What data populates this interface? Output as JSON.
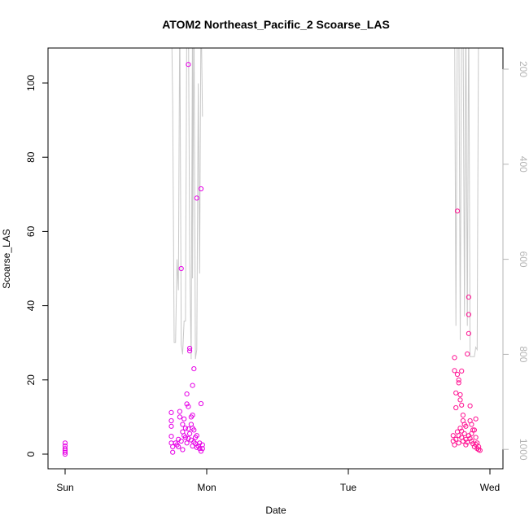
{
  "chart_data": {
    "type": "scatter",
    "title": "ATOM2 Northeast_Pacific_2 Scoarse_LAS",
    "xlabel": "Date",
    "ylabel": "Scoarse_LAS",
    "x_ticks": [
      "Sun",
      "Mon",
      "Tue",
      "Wed"
    ],
    "ylim": [
      -4,
      110
    ],
    "y_ticks": [
      0,
      20,
      40,
      60,
      80,
      100
    ],
    "y2_ticks": [
      200,
      400,
      600,
      800,
      1000
    ],
    "y2_reversed": true,
    "grid": false,
    "colors": {
      "points_a": "#e600e6",
      "points_b": "#ff1493",
      "secondary_line": "#c8c8c8"
    },
    "series": [
      {
        "points": [
          [
            0.0,
            0
          ],
          [
            0.0,
            0.5
          ],
          [
            0.0,
            1
          ],
          [
            0.0,
            1.5
          ],
          [
            0.0,
            2.2
          ],
          [
            0.0,
            3
          ],
          [
            0.75,
            11.2
          ],
          [
            0.75,
            9
          ],
          [
            0.75,
            7.5
          ],
          [
            0.75,
            4.8
          ],
          [
            0.75,
            3
          ],
          [
            0.76,
            2
          ],
          [
            0.76,
            0.5
          ],
          [
            0.81,
            11.5
          ],
          [
            0.81,
            10
          ],
          [
            0.82,
            50
          ],
          [
            0.83,
            8
          ],
          [
            0.83,
            6
          ],
          [
            0.84,
            5
          ],
          [
            0.84,
            9.5
          ],
          [
            0.86,
            16.2
          ],
          [
            0.86,
            13.5
          ],
          [
            0.87,
            105
          ],
          [
            0.87,
            12.8
          ],
          [
            0.88,
            28.5
          ],
          [
            0.88,
            27.8
          ],
          [
            0.89,
            10
          ],
          [
            0.89,
            8
          ],
          [
            0.9,
            7
          ],
          [
            0.9,
            18.5
          ],
          [
            0.9,
            10.5
          ],
          [
            0.91,
            23
          ],
          [
            0.91,
            6.5
          ],
          [
            0.93,
            69
          ],
          [
            0.93,
            5
          ],
          [
            0.95,
            3
          ],
          [
            0.96,
            71.5
          ],
          [
            0.96,
            13.6
          ],
          [
            0.97,
            2.5
          ],
          [
            0.97,
            1.5
          ],
          [
            0.78,
            3
          ],
          [
            0.79,
            2.5
          ],
          [
            0.8,
            4
          ],
          [
            0.8,
            2
          ],
          [
            0.82,
            3.5
          ],
          [
            0.83,
            1.2
          ],
          [
            0.85,
            4.5
          ],
          [
            0.85,
            7
          ],
          [
            0.86,
            3
          ],
          [
            0.87,
            4.2
          ],
          [
            0.87,
            6.8
          ],
          [
            0.88,
            5.5
          ],
          [
            0.89,
            3.8
          ],
          [
            0.9,
            2.2
          ],
          [
            0.91,
            3.2
          ],
          [
            0.92,
            2.8
          ],
          [
            0.92,
            4.5
          ],
          [
            0.93,
            1.8
          ],
          [
            0.94,
            2.2
          ],
          [
            0.95,
            1.5
          ],
          [
            0.96,
            0.8
          ]
        ]
      },
      {
        "points": [
          [
            2.75,
            26
          ],
          [
            2.75,
            22.5
          ],
          [
            2.76,
            16.5
          ],
          [
            2.76,
            12.5
          ],
          [
            2.77,
            65.5
          ],
          [
            2.77,
            21.5
          ],
          [
            2.78,
            20
          ],
          [
            2.78,
            19.2
          ],
          [
            2.79,
            16
          ],
          [
            2.79,
            14.6
          ],
          [
            2.8,
            22.4
          ],
          [
            2.8,
            13.2
          ],
          [
            2.81,
            10.5
          ],
          [
            2.81,
            9
          ],
          [
            2.82,
            8
          ],
          [
            2.83,
            7.5
          ],
          [
            2.84,
            27
          ],
          [
            2.85,
            42.3
          ],
          [
            2.85,
            37.6
          ],
          [
            2.85,
            32.5
          ],
          [
            2.86,
            13
          ],
          [
            2.86,
            9
          ],
          [
            2.87,
            5.5
          ],
          [
            2.87,
            8
          ],
          [
            2.88,
            6.5
          ],
          [
            2.89,
            6.5
          ],
          [
            2.9,
            9.5
          ],
          [
            2.9,
            4.5
          ],
          [
            2.91,
            3
          ],
          [
            2.92,
            2
          ],
          [
            2.93,
            1
          ],
          [
            2.74,
            5
          ],
          [
            2.74,
            3.5
          ],
          [
            2.75,
            2.5
          ],
          [
            2.76,
            4
          ],
          [
            2.77,
            6
          ],
          [
            2.78,
            5
          ],
          [
            2.78,
            3
          ],
          [
            2.79,
            7
          ],
          [
            2.8,
            4.5
          ],
          [
            2.8,
            6.2
          ],
          [
            2.81,
            3.5
          ],
          [
            2.82,
            5.5
          ],
          [
            2.83,
            4
          ],
          [
            2.83,
            2.5
          ],
          [
            2.84,
            3.2
          ],
          [
            2.85,
            5
          ],
          [
            2.86,
            4.2
          ],
          [
            2.87,
            3.5
          ],
          [
            2.88,
            2.8
          ],
          [
            2.89,
            2
          ],
          [
            2.9,
            2.6
          ],
          [
            2.91,
            1.5
          ],
          [
            2.92,
            1.2
          ]
        ]
      }
    ],
    "secondary_line": {
      "points": [
        [
          0.75,
          60
        ],
        [
          0.76,
          270
        ],
        [
          0.77,
          775
        ],
        [
          0.78,
          775
        ],
        [
          0.79,
          600
        ],
        [
          0.8,
          665
        ],
        [
          0.81,
          60
        ],
        [
          0.82,
          780
        ],
        [
          0.83,
          800
        ],
        [
          0.84,
          730
        ],
        [
          0.85,
          730
        ],
        [
          0.86,
          60
        ],
        [
          0.87,
          40
        ],
        [
          0.88,
          600
        ],
        [
          0.89,
          810
        ],
        [
          0.9,
          60
        ],
        [
          0.9,
          640
        ],
        [
          0.91,
          60
        ],
        [
          0.92,
          810
        ],
        [
          0.93,
          790
        ],
        [
          0.94,
          230
        ],
        [
          0.95,
          630
        ],
        [
          0.96,
          60
        ],
        [
          0.97,
          300
        ],
        [
          2.75,
          60
        ],
        [
          2.76,
          740
        ],
        [
          2.77,
          60
        ],
        [
          2.78,
          60
        ],
        [
          2.79,
          770
        ],
        [
          2.8,
          60
        ],
        [
          2.81,
          60
        ],
        [
          2.82,
          720
        ],
        [
          2.83,
          60
        ],
        [
          2.84,
          740
        ],
        [
          2.85,
          60
        ],
        [
          2.86,
          805
        ],
        [
          2.87,
          805
        ],
        [
          2.88,
          805
        ],
        [
          2.89,
          805
        ],
        [
          2.9,
          785
        ],
        [
          2.91,
          790
        ],
        [
          2.92,
          60
        ]
      ]
    }
  }
}
